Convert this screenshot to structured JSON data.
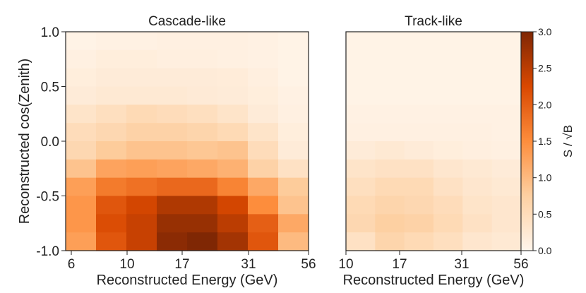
{
  "chart_data": [
    {
      "type": "heatmap",
      "title": "Cascade-like",
      "xlabel": "Reconstructed Energy (GeV)",
      "ylabel": "Reconstructed cos(Zenith)",
      "xticks": [
        "6",
        "10",
        "17",
        "31",
        "56"
      ],
      "yticks": [
        "1.0",
        "0.5",
        "0.0",
        "-0.5",
        "-1.0"
      ],
      "ylim": [
        -1.0,
        1.0
      ],
      "values": [
        [
          0.05,
          0.08,
          0.08,
          0.1,
          0.1,
          0.1,
          0.08,
          0.05
        ],
        [
          0.1,
          0.15,
          0.15,
          0.12,
          0.12,
          0.1,
          0.08,
          0.05
        ],
        [
          0.15,
          0.2,
          0.2,
          0.2,
          0.2,
          0.18,
          0.12,
          0.05
        ],
        [
          0.2,
          0.25,
          0.25,
          0.25,
          0.22,
          0.2,
          0.15,
          0.08
        ],
        [
          0.35,
          0.45,
          0.55,
          0.5,
          0.45,
          0.35,
          0.2,
          0.1
        ],
        [
          0.5,
          0.6,
          0.7,
          0.7,
          0.65,
          0.55,
          0.35,
          0.15
        ],
        [
          0.6,
          0.8,
          0.9,
          0.9,
          0.85,
          0.9,
          0.5,
          0.2
        ],
        [
          0.9,
          1.25,
          1.3,
          1.25,
          1.2,
          1.1,
          0.7,
          0.4
        ],
        [
          1.3,
          1.7,
          1.8,
          1.9,
          1.9,
          1.6,
          1.2,
          0.8
        ],
        [
          1.4,
          2.1,
          2.3,
          2.6,
          2.6,
          2.3,
          1.5,
          0.9
        ],
        [
          1.4,
          2.2,
          2.4,
          2.8,
          2.8,
          2.5,
          2.0,
          1.2
        ],
        [
          1.3,
          2.1,
          2.4,
          2.9,
          3.0,
          2.7,
          2.1,
          1.0
        ]
      ]
    },
    {
      "type": "heatmap",
      "title": "Track-like",
      "xlabel": "Reconstructed Energy (GeV)",
      "xticks": [
        "10",
        "17",
        "31",
        "56"
      ],
      "values": [
        [
          0.05,
          0.05,
          0.05,
          0.05,
          0.05,
          0.05
        ],
        [
          0.05,
          0.05,
          0.05,
          0.05,
          0.05,
          0.05
        ],
        [
          0.05,
          0.05,
          0.05,
          0.05,
          0.05,
          0.05
        ],
        [
          0.05,
          0.05,
          0.05,
          0.05,
          0.05,
          0.05
        ],
        [
          0.08,
          0.08,
          0.08,
          0.08,
          0.08,
          0.08
        ],
        [
          0.1,
          0.1,
          0.1,
          0.1,
          0.1,
          0.08
        ],
        [
          0.2,
          0.25,
          0.2,
          0.15,
          0.12,
          0.1
        ],
        [
          0.35,
          0.4,
          0.4,
          0.3,
          0.25,
          0.2
        ],
        [
          0.45,
          0.55,
          0.55,
          0.4,
          0.3,
          0.25
        ],
        [
          0.55,
          0.65,
          0.6,
          0.5,
          0.35,
          0.3
        ],
        [
          0.6,
          0.75,
          0.7,
          0.55,
          0.4,
          0.3
        ],
        [
          0.4,
          0.65,
          0.55,
          0.45,
          0.3,
          0.25
        ]
      ]
    }
  ],
  "colorbar": {
    "label": "S / √B",
    "min": 0.0,
    "max": 3.0,
    "ticks": [
      "3.0",
      "2.5",
      "2.0",
      "1.5",
      "1.0",
      "0.5",
      "0.0"
    ],
    "stops": [
      "#fff5eb",
      "#fdd0a2",
      "#fd8d3c",
      "#d94801",
      "#7f2704"
    ]
  }
}
